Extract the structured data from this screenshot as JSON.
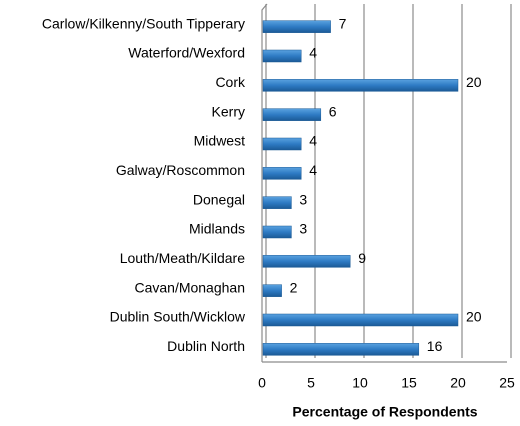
{
  "chart_data": {
    "type": "barh",
    "x_label": "Percentage of Respondents",
    "categories": [
      "Carlow/Kilkenny/South Tipperary",
      "Waterford/Wexford",
      "Cork",
      "Kerry",
      "Midwest",
      "Galway/Roscommon",
      "Donegal",
      "Midlands",
      "Louth/Meath/Kildare",
      "Cavan/Monaghan",
      "Dublin South/Wicklow",
      "Dublin North"
    ],
    "values": [
      7,
      4,
      20,
      6,
      4,
      4,
      3,
      3,
      9,
      2,
      20,
      16
    ],
    "color": "#2e7bc4",
    "xlim": [
      0,
      25
    ],
    "xticks": [
      0,
      5,
      10,
      15,
      20,
      25
    ],
    "grid": true
  }
}
